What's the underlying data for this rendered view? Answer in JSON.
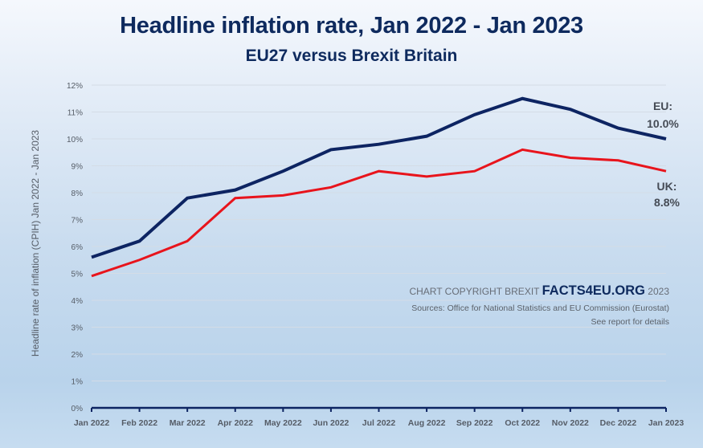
{
  "chart_data": {
    "type": "line",
    "title": "Headline inflation rate, Jan 2022 - Jan 2023",
    "subtitle": "EU27 versus Brexit Britain",
    "xlabel": "",
    "ylabel": "Headline rate of inflation (CPIH) Jan 2022 - Jan 2023",
    "ylim": [
      0,
      12
    ],
    "yticks": [
      "0%",
      "1%",
      "2%",
      "3%",
      "4%",
      "5%",
      "6%",
      "7%",
      "8%",
      "9%",
      "10%",
      "11%",
      "12%"
    ],
    "grid": true,
    "categories": [
      "Jan 2022",
      "Feb 2022",
      "Mar 2022",
      "Apr 2022",
      "May 2022",
      "Jun 2022",
      "Jul 2022",
      "Aug 2022",
      "Sep 2022",
      "Oct 2022",
      "Nov 2022",
      "Dec 2022",
      "Jan 2023"
    ],
    "series": [
      {
        "name": "EU",
        "color": "#0d2462",
        "values": [
          5.6,
          6.2,
          7.8,
          8.1,
          8.8,
          9.6,
          9.8,
          10.1,
          10.9,
          11.5,
          11.1,
          10.4,
          10.0
        ],
        "end_label_line1": "EU:",
        "end_label_line2": "10.0%"
      },
      {
        "name": "UK",
        "color": "#e8141c",
        "values": [
          4.9,
          5.5,
          6.2,
          7.8,
          7.9,
          8.2,
          8.8,
          8.6,
          8.8,
          9.6,
          9.3,
          9.2,
          8.8
        ],
        "end_label_line1": "UK:",
        "end_label_line2": "8.8%"
      }
    ],
    "annotations": {
      "copyright_prefix": "CHART COPYRIGHT BREXIT ",
      "brand": "FACTS4EU.ORG",
      "copyright_suffix": " 2023",
      "sources": "Sources: Office for National Statistics and EU Commission (Eurostat)",
      "see_report": "See report for details"
    }
  },
  "colors": {
    "title": "#0e2a5e",
    "axis": "#0d2462",
    "grid": "#d4dce6"
  }
}
